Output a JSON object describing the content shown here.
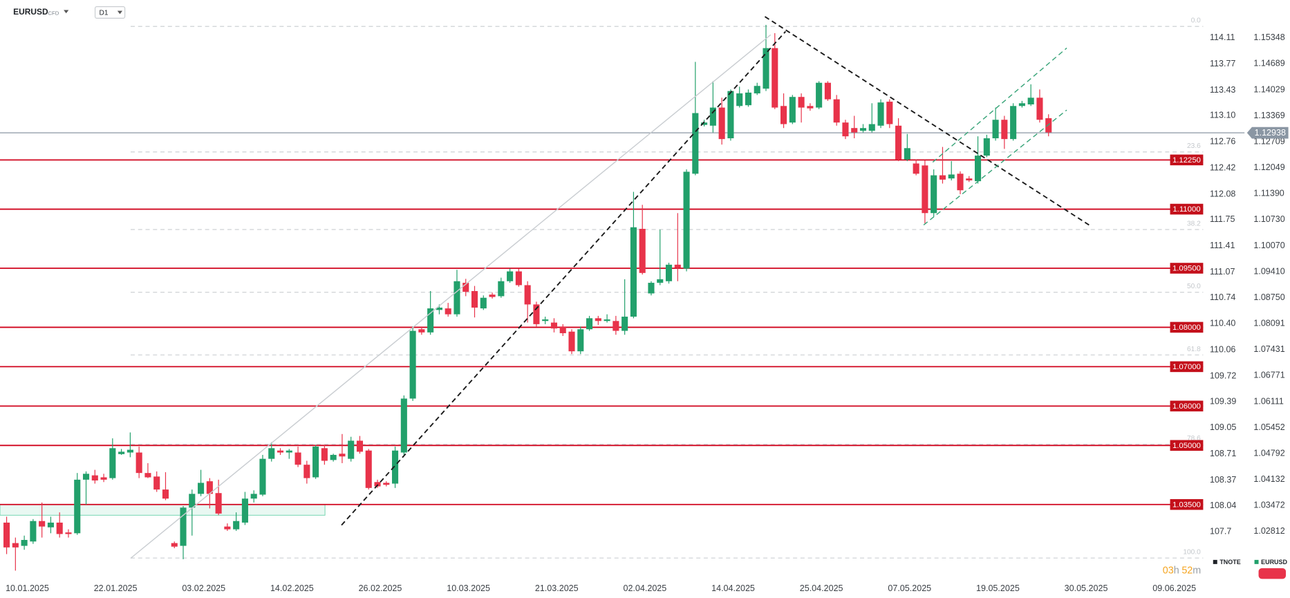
{
  "header": {
    "symbol": "EURUSD",
    "instrument_type": "CFD",
    "interval": "D1"
  },
  "chart_data": {
    "type": "candlestick",
    "up_color": "#22a06b",
    "down_color": "#e8334a",
    "open": [
      1.0304,
      1.0252,
      1.0245,
      1.0256,
      1.0308,
      1.0292,
      1.0304,
      1.0279,
      1.0277,
      1.0413,
      1.0424,
      1.0419,
      1.0417,
      1.0478,
      1.0482,
      1.0482,
      1.043,
      1.0421,
      1.0388,
      1.0252,
      1.0245,
      1.0342,
      1.0377,
      1.0409,
      1.0379,
      1.0294,
      1.0287,
      1.0304,
      1.0365,
      1.0375,
      1.0466,
      1.0487,
      1.0482,
      1.0482,
      1.0451,
      1.0419,
      1.0493,
      1.0463,
      1.0479,
      1.0466,
      1.0512,
      1.0487,
      1.0407,
      1.0405,
      1.0403,
      1.0482,
      1.0619,
      1.0795,
      1.0787,
      1.0844,
      1.0848,
      1.0833,
      1.0913,
      1.0892,
      1.0848,
      1.0883,
      1.0879,
      1.0917,
      1.0942,
      1.0907,
      1.0858,
      1.0816,
      1.0812,
      1.0802,
      1.0789,
      1.0739,
      1.0795,
      1.0823,
      1.0816,
      1.0816,
      1.0791,
      1.0827,
      1.105,
      1.0886,
      1.0913,
      1.0917,
      1.0959,
      1.0949,
      1.119,
      1.1314,
      1.1312,
      1.1358,
      1.128,
      1.1362,
      1.1364,
      1.1394,
      1.1406,
      1.1509,
      1.1362,
      1.132,
      1.1385,
      1.1362,
      1.1358,
      1.1421,
      1.1379,
      1.132,
      1.1306,
      1.1299,
      1.1299,
      1.1312,
      1.1373,
      1.1312,
      1.1226,
      1.1216,
      1.1211,
      1.109,
      1.1186,
      1.1178,
      1.119,
      1.1178,
      1.1171,
      1.1236,
      1.128,
      1.1327,
      1.1278,
      1.1362,
      1.1366,
      1.1383,
      1.1331
    ],
    "high": [
      1.0319,
      1.0266,
      1.0271,
      1.0313,
      1.0355,
      1.0319,
      1.033,
      1.0287,
      1.043,
      1.0434,
      1.0438,
      1.0428,
      1.0518,
      1.0491,
      1.0533,
      1.0497,
      1.0455,
      1.0434,
      1.0432,
      1.0256,
      1.0346,
      1.0388,
      1.0438,
      1.0417,
      1.0413,
      1.0302,
      1.033,
      1.0382,
      1.0386,
      1.0476,
      1.0508,
      1.0493,
      1.0491,
      1.0497,
      1.0461,
      1.0501,
      1.0501,
      1.0479,
      1.0529,
      1.0522,
      1.0524,
      1.0491,
      1.0413,
      1.0409,
      1.0497,
      1.0627,
      1.0802,
      1.0802,
      1.0892,
      1.0858,
      1.0862,
      1.0946,
      1.0923,
      1.0905,
      1.0881,
      1.0888,
      1.0926,
      1.0949,
      1.0949,
      1.0917,
      1.0865,
      1.0827,
      1.0823,
      1.0808,
      1.0795,
      1.0802,
      1.0829,
      1.0829,
      1.0833,
      1.0829,
      1.0922,
      1.1144,
      1.1111,
      1.0917,
      1.1048,
      1.0964,
      1.109,
      1.1201,
      1.1474,
      1.1327,
      1.1425,
      1.1383,
      1.1404,
      1.1411,
      1.1404,
      1.1421,
      1.1568,
      1.1547,
      1.1394,
      1.139,
      1.1394,
      1.1369,
      1.1425,
      1.1425,
      1.139,
      1.1327,
      1.1337,
      1.1316,
      1.1369,
      1.1379,
      1.1379,
      1.1331,
      1.1291,
      1.1226,
      1.1224,
      1.1201,
      1.1258,
      1.1222,
      1.1196,
      1.1184,
      1.1285,
      1.1289,
      1.1358,
      1.1337,
      1.1369,
      1.1375,
      1.1417,
      1.1404,
      1.1341
    ],
    "low": [
      1.0224,
      1.0182,
      1.0235,
      1.025,
      1.0266,
      1.0277,
      1.0266,
      1.0266,
      1.0273,
      1.035,
      1.0403,
      1.0407,
      1.0413,
      1.0476,
      1.047,
      1.0417,
      1.0417,
      1.0382,
      1.0361,
      1.0239,
      1.0211,
      1.0271,
      1.0371,
      1.034,
      1.0323,
      1.0283,
      1.0283,
      1.0298,
      1.0355,
      1.0371,
      1.0459,
      1.0476,
      1.0466,
      1.0445,
      1.0403,
      1.0415,
      1.0451,
      1.0459,
      1.0455,
      1.0459,
      1.0479,
      1.0388,
      1.0392,
      1.0396,
      1.0392,
      1.0476,
      1.0613,
      1.0781,
      1.0781,
      1.0833,
      1.0827,
      1.0827,
      1.0879,
      1.0825,
      1.0844,
      1.0873,
      1.0875,
      1.0913,
      1.0903,
      1.0812,
      1.0802,
      1.0808,
      1.0787,
      1.0778,
      1.0732,
      1.0732,
      1.0791,
      1.0806,
      1.0812,
      1.0781,
      1.0781,
      1.0823,
      1.0934,
      1.0881,
      1.0907,
      1.0911,
      1.0917,
      1.0942,
      1.1186,
      1.131,
      1.1295,
      1.1264,
      1.1274,
      1.1358,
      1.136,
      1.139,
      1.14,
      1.1354,
      1.1306,
      1.1316,
      1.132,
      1.135,
      1.1354,
      1.1375,
      1.1312,
      1.1278,
      1.128,
      1.1295,
      1.1295,
      1.1306,
      1.1306,
      1.1222,
      1.1222,
      1.1186,
      1.1064,
      1.1081,
      1.1165,
      1.1173,
      1.1138,
      1.1169,
      1.1165,
      1.1232,
      1.1274,
      1.1253,
      1.1274,
      1.1358,
      1.1362,
      1.132,
      1.1285
    ],
    "close": [
      1.0241,
      1.0241,
      1.026,
      1.0308,
      1.0294,
      1.0304,
      1.0275,
      1.0275,
      1.0413,
      1.0428,
      1.0411,
      1.0413,
      1.0493,
      1.0484,
      1.0489,
      1.043,
      1.0419,
      1.0388,
      1.0365,
      1.0243,
      1.0342,
      1.0377,
      1.0405,
      1.0377,
      1.0327,
      1.0287,
      1.0308,
      1.0365,
      1.0377,
      1.0466,
      1.0493,
      1.0482,
      1.0487,
      1.0451,
      1.0417,
      1.0497,
      1.0461,
      1.0476,
      1.0472,
      1.0512,
      1.0484,
      1.0392,
      1.0396,
      1.04,
      1.0487,
      1.0619,
      1.0791,
      1.0787,
      1.0848,
      1.085,
      1.0833,
      1.0917,
      1.089,
      1.085,
      1.0875,
      1.0877,
      1.0917,
      1.0942,
      1.0907,
      1.0858,
      1.0808,
      1.082,
      1.0797,
      1.0785,
      1.0739,
      1.0795,
      1.0823,
      1.0816,
      1.082,
      1.0791,
      1.0827,
      1.1054,
      1.0938,
      1.0913,
      1.0922,
      1.0959,
      1.0951,
      1.1195,
      1.1344,
      1.132,
      1.1358,
      1.1278,
      1.14,
      1.1394,
      1.1396,
      1.1413,
      1.1509,
      1.1358,
      1.1316,
      1.1385,
      1.1358,
      1.1356,
      1.1421,
      1.1379,
      1.132,
      1.1285,
      1.1295,
      1.1306,
      1.1316,
      1.1371,
      1.1316,
      1.1226,
      1.1255,
      1.119,
      1.109,
      1.1186,
      1.1175,
      1.1188,
      1.1148,
      1.1173,
      1.1236,
      1.128,
      1.1327,
      1.1278,
      1.1362,
      1.1369,
      1.1383,
      1.1327,
      1.1295
    ],
    "ylim": [
      1.0161,
      1.1631
    ],
    "yticks": [
      1.15348,
      1.14689,
      1.14029,
      1.13369,
      1.12709,
      1.12049,
      {
        "value": 1.1139,
        "label": "1.11390"
      },
      {
        "value": 1.1073,
        "label": "1.10730"
      },
      {
        "value": 1.1007,
        "label": "1.10070"
      },
      {
        "value": 1.0941,
        "label": "1.09410"
      },
      {
        "value": 1.0875,
        "label": "1.08750"
      },
      1.08091,
      1.07431,
      1.06771,
      1.06111,
      1.05452,
      1.04792,
      1.04132,
      1.03472,
      1.02812
    ],
    "y2lim": [
      107.09,
      114.6
    ],
    "y2ticks": [
      114.11,
      113.77,
      113.43,
      {
        "value": 113.1,
        "label": "113.10"
      },
      112.76,
      112.42,
      112.08,
      111.75,
      111.41,
      111.07,
      110.74,
      {
        "value": 110.4,
        "label": "110.40"
      },
      110.06,
      109.72,
      109.39,
      109.05,
      108.71,
      108.37,
      108.04,
      107.7
    ],
    "x_labels": [
      "10.01.2025",
      "22.01.2025",
      "03.02.2025",
      "14.02.2025",
      "26.02.2025",
      "10.03.2025",
      "21.03.2025",
      "02.04.2025",
      "14.04.2025",
      "25.04.2025",
      "07.05.2025",
      "19.05.2025",
      "30.05.2025",
      "09.06.2025"
    ],
    "price_levels": [
      {
        "value": 1.1225,
        "label": "1.12250"
      },
      {
        "value": 1.11,
        "label": "1.11000"
      },
      {
        "value": 1.095,
        "label": "1.09500"
      },
      {
        "value": 1.08,
        "label": "1.08000"
      },
      {
        "value": 1.07,
        "label": "1.07000"
      },
      {
        "value": 1.06,
        "label": "1.06000"
      },
      {
        "value": 1.05,
        "label": "1.05000"
      },
      {
        "value": 1.035,
        "label": "1.03500"
      }
    ],
    "level_color": "#d0021b",
    "last_price": 1.12938,
    "last_price_color": "#8a96a3",
    "fibonacci": {
      "levels": [
        {
          "value": 0,
          "label": "0.0"
        },
        23.6,
        38.2,
        {
          "value": 50,
          "label": "50.0"
        },
        61.8,
        78.6,
        {
          "value": 100,
          "label": "100.0"
        }
      ],
      "top": 1.1564,
      "bottom": 1.0214
    },
    "legend": [
      {
        "name": "TNOTE",
        "color": "#1f2328"
      },
      {
        "name": "EURUSD",
        "color": "#22a06b"
      }
    ]
  },
  "countdown": {
    "hours": "03",
    "hours_unit": "h",
    "minutes": "52",
    "minutes_unit": "m"
  }
}
